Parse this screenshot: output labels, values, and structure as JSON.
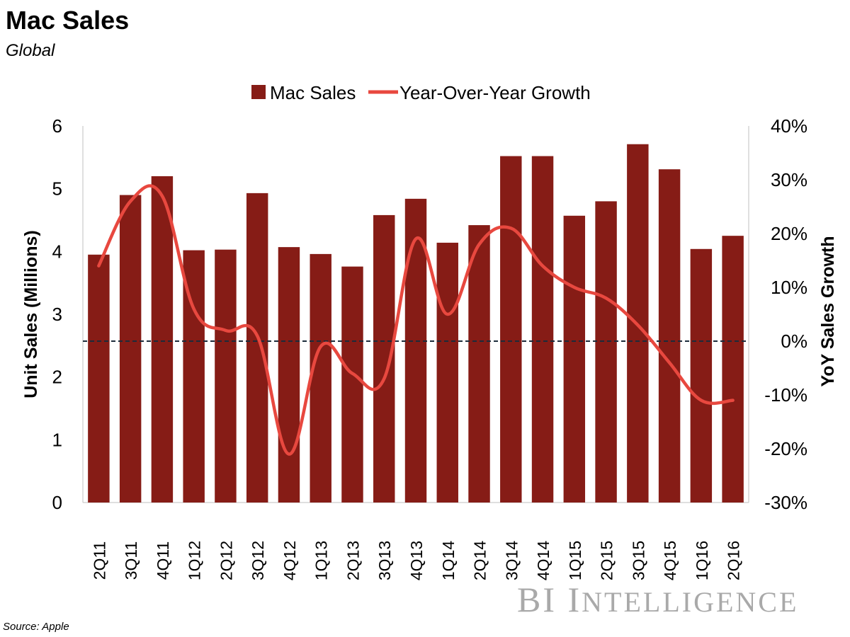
{
  "header": {
    "title": "Mac Sales",
    "subtitle": "Global"
  },
  "footer": {
    "source": "Source: Apple"
  },
  "watermark": {
    "text": "BI Intelligence"
  },
  "colors": {
    "bar": "#861c16",
    "line": "#e8483f",
    "zero_line": "#1c2b3a"
  },
  "chart_data": {
    "type": "bar",
    "categories": [
      "2Q11",
      "3Q11",
      "4Q11",
      "1Q12",
      "2Q12",
      "3Q12",
      "4Q12",
      "1Q13",
      "2Q13",
      "3Q13",
      "4Q13",
      "1Q14",
      "2Q14",
      "3Q14",
      "4Q14",
      "1Q15",
      "2Q15",
      "3Q15",
      "4Q15",
      "1Q16",
      "2Q16"
    ],
    "series": [
      {
        "name": "Mac Sales",
        "type": "bar",
        "axis": "left",
        "values": [
          3.95,
          4.9,
          5.2,
          4.02,
          4.03,
          4.93,
          4.07,
          3.96,
          3.76,
          4.58,
          4.84,
          4.14,
          4.42,
          5.52,
          5.52,
          4.57,
          4.8,
          5.71,
          5.31,
          4.04,
          4.25
        ]
      },
      {
        "name": "Year-Over-Year Growth",
        "type": "line",
        "axis": "right",
        "values": [
          14,
          26,
          27,
          6,
          2,
          1,
          -21,
          -1,
          -6,
          -7,
          19,
          5,
          18,
          21,
          14,
          10,
          8,
          3,
          -4,
          -11,
          -11
        ]
      }
    ],
    "xlabel": "",
    "ylabel": "Unit Sales (Millions)",
    "ylabel_right": "YoY Sales Growth",
    "ylim": [
      0,
      6
    ],
    "ylim_right": [
      -30,
      40
    ],
    "yticks": [
      "0",
      "1",
      "2",
      "3",
      "4",
      "5",
      "6"
    ],
    "yticks_right": [
      "-30%",
      "-20%",
      "-10%",
      "0%",
      "10%",
      "20%",
      "30%",
      "40%"
    ],
    "reference_line": {
      "axis": "right",
      "value": 0,
      "style": "dashed"
    },
    "legend_position": "top-center",
    "grid": false
  }
}
